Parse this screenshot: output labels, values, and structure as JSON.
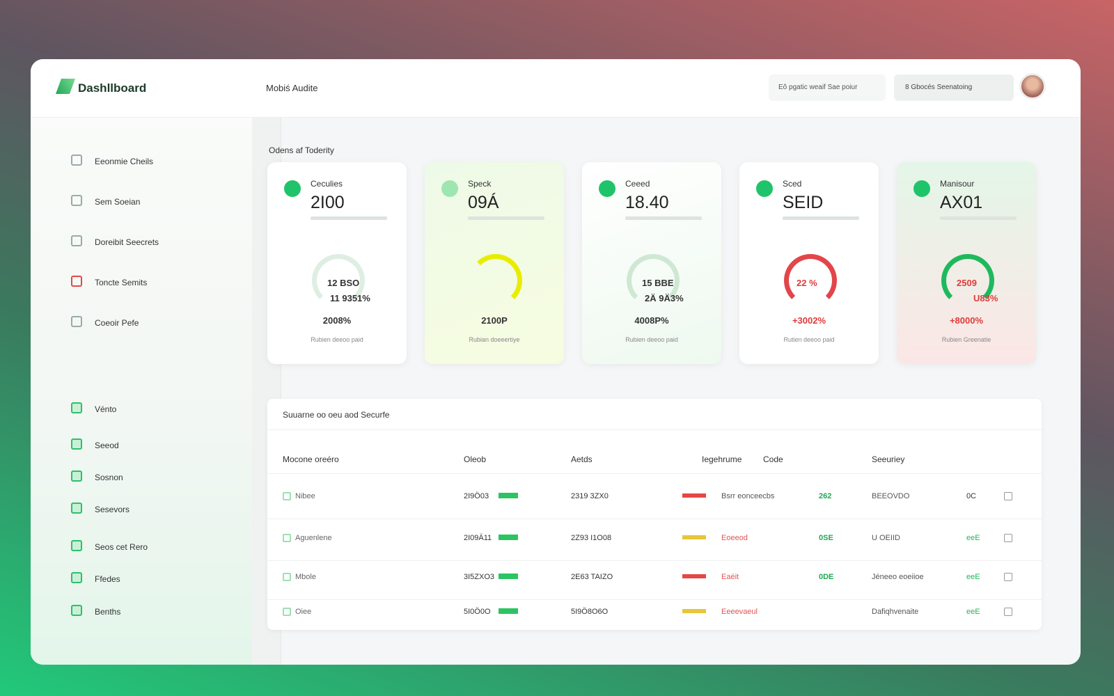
{
  "header": {
    "brand": "Dashllboard",
    "page_title": "Mobiś Audite",
    "search": "Eô pgatic weaif Sae poiur",
    "dropdown": "8 Gbocés Seenatoing"
  },
  "sidebar": {
    "top": [
      "Eeonmie Cheils",
      "Sem Soeian",
      "Doreibit Seecrets",
      "Toncte Semits",
      "Coeoir Pefe"
    ],
    "bottom": [
      "Vénto",
      "Seeod",
      "Sosnon",
      "Sesevors",
      "Seos cet Rero",
      "Ffedes",
      "Benths"
    ]
  },
  "section_title": "Odens af Toderity",
  "cards": [
    {
      "label": "Ceculies",
      "value": "2I00",
      "gauge_top": "12 BSO",
      "gauge_bottom": "11 9351%",
      "percent": "2008%",
      "footer": "Rubien deeoo paid"
    },
    {
      "label": "Speck",
      "value": "09Á",
      "percent": "2100P",
      "footer": "Rubian doeeertiye"
    },
    {
      "label": "Ceeed",
      "value": "18.40",
      "gauge_top": "15 BBE",
      "gauge_bottom": "2Ä 9Ä3%",
      "percent": "4008P%",
      "footer": "Rubien deeoo paid"
    },
    {
      "label": "Sced",
      "value": "SEID",
      "gauge_top": "22 %",
      "percent": "+3002%",
      "footer": "Rutien deeoo paid"
    },
    {
      "label": "Manisour",
      "value": "AX01",
      "gauge_top": "2509",
      "gauge_bottom": "U83%",
      "percent": "+8000%",
      "footer": "Rubien Greenatie"
    }
  ],
  "table": {
    "title": "Suuarne oo oeu aod Securfe",
    "columns": [
      "Mocone oreéro",
      "Oleob",
      "Aetds",
      "Iegehrume",
      "Code",
      "Seeuriey"
    ],
    "rows": [
      {
        "name": "Nibee",
        "check": "2I9Ö03",
        "acts": "2319 3ZX0",
        "tag": "Bsrr eonceecbs",
        "code": "262",
        "security": "BEEOVDO",
        "mark": "0C"
      },
      {
        "name": "Aguenlene",
        "check": "2I09Ä11",
        "acts": "2Z93 I1O08",
        "tag": "Eoeeod",
        "code": "0SE",
        "security": "U OEIID",
        "mark": "eeE"
      },
      {
        "name": "Mbole",
        "check": "3I5ZXO3",
        "acts": "2E63 TAIZO",
        "tag": "Eaéit",
        "code": "0DE",
        "security": "Jéneeo eoeiioe",
        "mark": "eeE"
      },
      {
        "name": "Oiee",
        "check": "5I0Ö0O",
        "acts": "5I9Ö8O6O",
        "tag": "Eeeevaeul",
        "security": "Dafiqhvenaite",
        "mark": "eeE"
      }
    ]
  }
}
